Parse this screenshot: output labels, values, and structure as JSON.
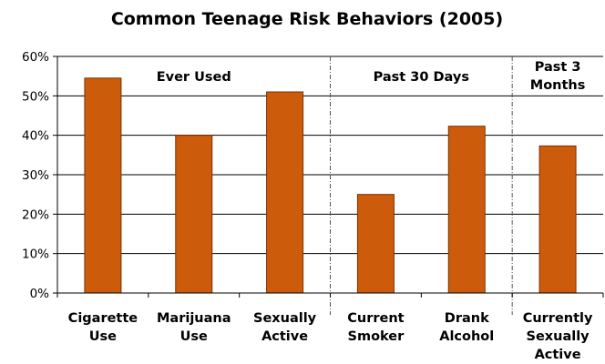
{
  "chart_data": {
    "type": "bar",
    "title": "Common Teenage Risk Behaviors (2005)",
    "categories": [
      [
        "Cigarette",
        "Use"
      ],
      [
        "Marijuana",
        "Use"
      ],
      [
        "Sexually",
        "Active"
      ],
      [
        "Current",
        "Smoker"
      ],
      [
        "Drank",
        "Alcohol"
      ],
      [
        "Currently",
        "Sexually",
        "Active"
      ]
    ],
    "values": [
      54.5,
      40,
      51,
      25,
      42.3,
      37.3
    ],
    "ylim": [
      0,
      60
    ],
    "yticks": [
      "0%",
      "10%",
      "20%",
      "30%",
      "40%",
      "50%",
      "60%"
    ],
    "grid": true,
    "groups": [
      {
        "label": [
          "Ever Used"
        ],
        "span": [
          0,
          2
        ]
      },
      {
        "label": [
          "Past 30 Days"
        ],
        "span": [
          3,
          4
        ]
      },
      {
        "label": [
          "Past 3",
          "Months"
        ],
        "span": [
          5,
          5
        ]
      }
    ],
    "colors": {
      "bar": "#cc5c0c",
      "bar_edge": "#7a3000",
      "grid": "#000000",
      "separator": "#555555"
    }
  }
}
